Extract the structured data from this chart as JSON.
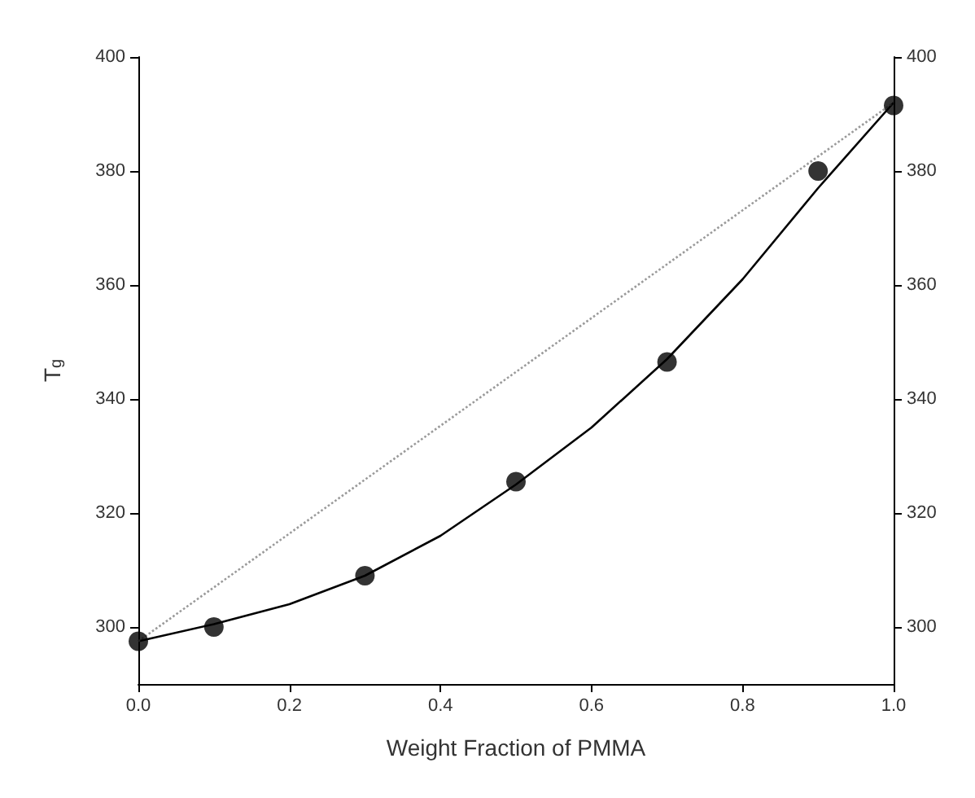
{
  "chart_data": {
    "type": "scatter",
    "xlabel": "Weight Fraction of PMMA",
    "ylabel": "T$_{g}$",
    "xlim": [
      0,
      1
    ],
    "xticks": [
      {
        "value": 0,
        "label": "0.0"
      },
      0.2,
      0.4,
      0.6,
      0.8,
      {
        "value": 1,
        "label": "1.0"
      }
    ],
    "ylim": [
      290,
      400
    ],
    "yticks": [
      300,
      320,
      340,
      360,
      380,
      400
    ],
    "y2lim": [
      290,
      400
    ],
    "y2ticks": [
      300,
      320,
      340,
      360,
      380,
      400
    ],
    "grid": false,
    "series": [
      {
        "color": "#000000",
        "marker": "circle",
        "x": [
          0,
          0.1,
          0.3,
          0.5,
          0.7,
          0.9,
          1.0
        ],
        "values": [
          297.5,
          300,
          309,
          325.5,
          346.5,
          380,
          391.5
        ]
      },
      {
        "type": "line",
        "color": "#000000",
        "marker": "none",
        "line_style": "solid",
        "x": [
          0,
          0.1,
          0.2,
          0.3,
          0.4,
          0.5,
          0.6,
          0.7,
          0.8,
          0.9,
          1.0
        ],
        "values": [
          297.5,
          300.5,
          304,
          309,
          316,
          325,
          335,
          347,
          361,
          377,
          392
        ]
      },
      {
        "type": "line",
        "color": "#9a9a9a",
        "marker": "none",
        "line_style": "dotted",
        "x": [
          0,
          1
        ],
        "values": [
          297.5,
          392
        ]
      }
    ]
  }
}
